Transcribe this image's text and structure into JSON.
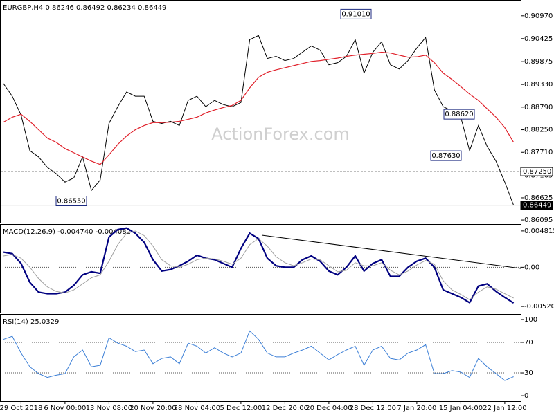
{
  "chart_data": [
    {
      "type": "line",
      "title": "EURGBP,H4 0.86246 0.86492 0.86234 0.86449",
      "watermark": "ActionForex.com",
      "ylim": [
        0.8603,
        0.9133
      ],
      "yticks": [
        {
          "value": 0.9097,
          "label": "0.90970"
        },
        0.90425,
        0.89875,
        {
          "value": 0.8933,
          "label": "0.89330"
        },
        {
          "value": 0.8879,
          "label": "0.88790"
        },
        {
          "value": 0.8825,
          "label": "0.88250"
        },
        {
          "value": 0.8771,
          "label": "0.87710"
        },
        0.87165,
        0.86625,
        0.86095
      ],
      "series": [
        {
          "color": "#000000",
          "width": 1,
          "values": [
            0.8935,
            0.8905,
            0.886,
            0.8775,
            0.876,
            0.8735,
            0.872,
            0.87,
            0.871,
            0.876,
            0.868,
            0.8705,
            0.884,
            0.888,
            0.8915,
            0.8905,
            0.8905,
            0.8845,
            0.884,
            0.8845,
            0.8835,
            0.8895,
            0.8905,
            0.888,
            0.8895,
            0.8885,
            0.888,
            0.889,
            0.904,
            0.905,
            0.8995,
            0.9,
            0.899,
            0.8995,
            0.901,
            0.9025,
            0.9015,
            0.898,
            0.8985,
            0.9,
            0.904,
            0.896,
            0.901,
            0.9035,
            0.898,
            0.897,
            0.899,
            0.902,
            0.9045,
            0.892,
            0.888,
            0.887,
            0.8855,
            0.8775,
            0.8835,
            0.8785,
            0.875,
            0.87,
            0.86449
          ]
        },
        {
          "color": "#e0202a",
          "width": 1.2,
          "values": [
            0.8843,
            0.8855,
            0.8862,
            0.8845,
            0.8825,
            0.8805,
            0.8795,
            0.878,
            0.877,
            0.876,
            0.875,
            0.8742,
            0.8765,
            0.879,
            0.881,
            0.8825,
            0.8835,
            0.8842,
            0.8842,
            0.8843,
            0.8845,
            0.885,
            0.8855,
            0.8865,
            0.8872,
            0.8878,
            0.8883,
            0.8895,
            0.8925,
            0.895,
            0.8962,
            0.8968,
            0.8973,
            0.8978,
            0.8983,
            0.8988,
            0.899,
            0.8993,
            0.8996,
            0.9,
            0.9003,
            0.9005,
            0.9007,
            0.901,
            0.9008,
            0.9003,
            0.8998,
            0.8999,
            0.9003,
            0.8985,
            0.896,
            0.8945,
            0.8928,
            0.891,
            0.8895,
            0.8875,
            0.8855,
            0.883,
            0.8795
          ]
        }
      ],
      "annotations": [
        {
          "value": 0.9101,
          "label": "0.91010"
        },
        {
          "value": 0.8862,
          "label": "0.88620"
        },
        {
          "value": 0.8763,
          "label": "0.87630"
        },
        {
          "value": 0.8655,
          "label": "0.86550"
        }
      ],
      "levels": [
        {
          "value": 0.8725,
          "label": "0.87250",
          "style": "dashed"
        },
        {
          "value": 0.86449,
          "label": "0.86449",
          "style": "current"
        }
      ]
    },
    {
      "type": "line",
      "title": "MACD(12,26,9) -0.004740 -0.004082",
      "ylim": [
        -0.00602,
        0.00563
      ],
      "yticks": [
        0.004815,
        {
          "value": 0,
          "label": "0.00"
        },
        -0.005204
      ],
      "levels": [
        0
      ],
      "series": [
        {
          "color": "#000080",
          "width": 2.2,
          "values": [
            0.002,
            0.0018,
            0.0005,
            -0.002,
            -0.0033,
            -0.0035,
            -0.0035,
            -0.0033,
            -0.0024,
            -0.001,
            -0.0006,
            -0.0008,
            0.004,
            0.005,
            0.0052,
            0.0045,
            0.0033,
            0.001,
            -0.0005,
            -0.0003,
            0.0002,
            0.0008,
            0.0016,
            0.0012,
            0.001,
            0.0005,
            0.0,
            0.0025,
            0.0045,
            0.0038,
            0.0012,
            0.0002,
            0.0,
            0.0,
            0.001,
            0.0015,
            0.0008,
            -0.0005,
            -0.001,
            0.0,
            0.0015,
            -0.0005,
            0.0005,
            0.001,
            -0.0012,
            -0.0012,
            0.0,
            0.0008,
            0.0012,
            0.0,
            -0.003,
            -0.0035,
            -0.004,
            -0.0047,
            -0.0025,
            -0.0022,
            -0.0032,
            -0.004,
            -0.00474
          ]
        },
        {
          "color": "#a0a0a0",
          "width": 1,
          "values": [
            0.0015,
            0.0017,
            0.0012,
            0.0,
            -0.0015,
            -0.0026,
            -0.0032,
            -0.0034,
            -0.003,
            -0.0022,
            -0.0014,
            -0.001,
            0.0008,
            0.003,
            0.0045,
            0.0048,
            0.0042,
            0.0028,
            0.001,
            0.0002,
            0.0,
            0.0004,
            0.001,
            0.0012,
            0.0011,
            0.0008,
            0.0004,
            0.0012,
            0.003,
            0.0038,
            0.0028,
            0.0014,
            0.0006,
            0.0002,
            0.0006,
            0.0011,
            0.001,
            0.0002,
            -0.0006,
            -0.0004,
            0.0006,
            0.0002,
            0.0002,
            0.0006,
            -0.0004,
            -0.001,
            -0.0005,
            0.0003,
            0.0009,
            0.0004,
            -0.0018,
            -0.003,
            -0.0036,
            -0.0043,
            -0.0033,
            -0.0026,
            -0.0029,
            -0.0035,
            -0.004082
          ]
        }
      ]
    },
    {
      "type": "line",
      "title": "RSI(14) 25.0329",
      "ylim": [
        -7.2,
        106.3
      ],
      "yticks": [
        100,
        70,
        30,
        0
      ],
      "levels": [
        70,
        30
      ],
      "categories": [
        null,
        null,
        "29 Oct 2018",
        null,
        null,
        null,
        null,
        "6 Nov 00:00",
        null,
        null,
        null,
        null,
        "13 Nov 08:00",
        null,
        null,
        null,
        null,
        "20 Nov 20:00",
        null,
        null,
        null,
        null,
        "28 Nov 04:00",
        null,
        null,
        null,
        null,
        "5 Dec 12:00",
        null,
        null,
        null,
        null,
        "12 Dec 20:00",
        null,
        null,
        null,
        null,
        "20 Dec 04:00",
        null,
        null,
        null,
        null,
        "28 Dec 12:00",
        null,
        null,
        null,
        null,
        "7 Jan 20:00",
        null,
        null,
        null,
        null,
        "15 Jan 04:00",
        null,
        null,
        null,
        null,
        "22 Jan 12:00",
        null
      ],
      "series": [
        {
          "color": "#3c7fd6",
          "width": 1,
          "values": [
            74,
            78,
            56,
            38,
            29,
            24,
            27,
            29,
            51,
            60,
            38,
            40,
            76,
            69,
            65,
            58,
            60,
            42,
            49,
            51,
            42,
            69,
            65,
            56,
            63,
            56,
            51,
            56,
            85,
            74,
            56,
            51,
            51,
            56,
            60,
            65,
            56,
            47,
            54,
            60,
            65,
            40,
            60,
            65,
            49,
            47,
            56,
            60,
            67,
            29,
            29,
            33,
            31,
            24,
            49,
            38,
            29,
            20,
            25.0329
          ]
        }
      ]
    }
  ]
}
